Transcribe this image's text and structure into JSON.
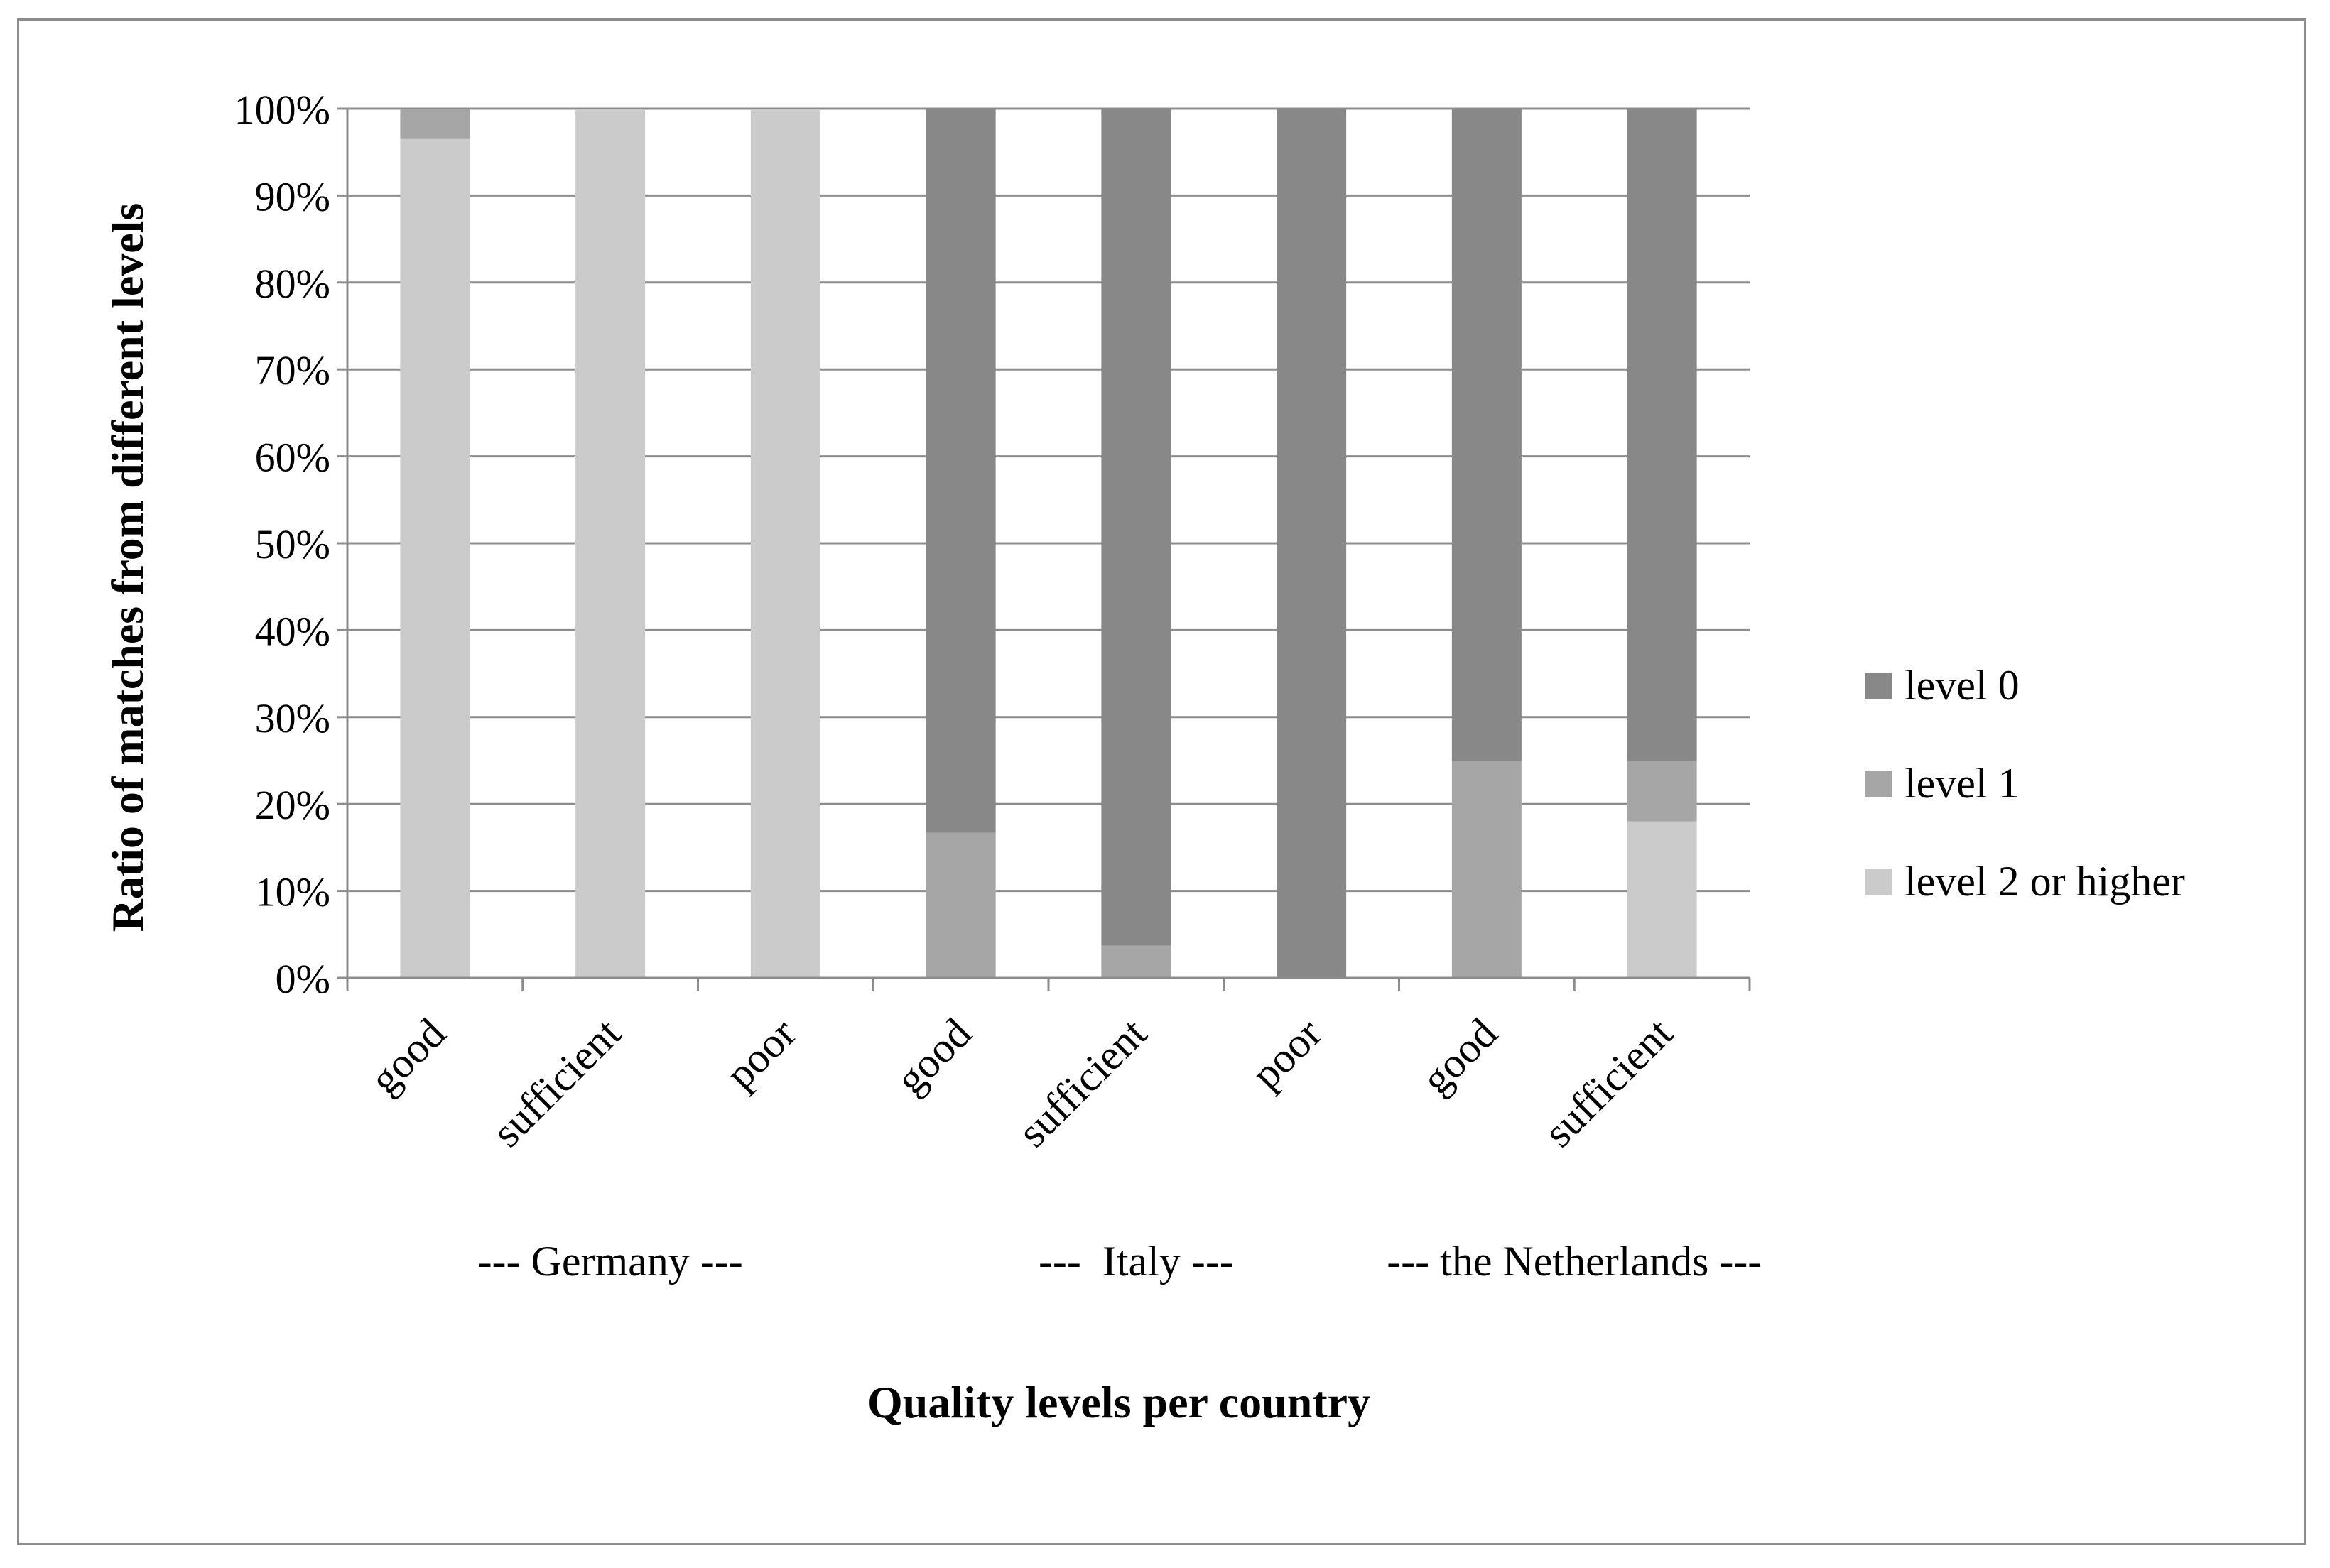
{
  "chart_data": {
    "type": "bar",
    "stacked": true,
    "percent": true,
    "categories": [
      "good",
      "sufficient",
      "poor",
      "good",
      "sufficient",
      "poor",
      "good",
      "sufficient"
    ],
    "groups": [
      {
        "label": "--- Germany ---",
        "from": 0,
        "to": 2
      },
      {
        "label": "---  Italy ---",
        "from": 3,
        "to": 5
      },
      {
        "label": "--- the Netherlands ---",
        "from": 6,
        "to": 7
      }
    ],
    "series": [
      {
        "name": "level 2 or higher",
        "color": "#cbcbcb",
        "values": [
          96.5,
          100,
          100,
          0,
          0,
          0,
          0,
          18
        ]
      },
      {
        "name": "level 1",
        "color": "#a6a6a6",
        "values": [
          3.5,
          0,
          0,
          16.7,
          3.7,
          0,
          25,
          7
        ]
      },
      {
        "name": "level 0",
        "color": "#888888",
        "values": [
          0,
          0,
          0,
          83.3,
          96.3,
          100,
          75,
          75
        ]
      }
    ],
    "legend_order": [
      "level 0",
      "level 1",
      "level 2 or higher"
    ],
    "y_ticks": [
      "0%",
      "10%",
      "20%",
      "30%",
      "40%",
      "50%",
      "60%",
      "70%",
      "80%",
      "90%",
      "100%"
    ],
    "ylim": [
      0,
      100
    ],
    "xlabel": "Quality levels per country",
    "ylabel": "Ratio of matches from different levels",
    "grid": true,
    "legend_position": "right",
    "gridline_color": "#8c8c8c"
  }
}
